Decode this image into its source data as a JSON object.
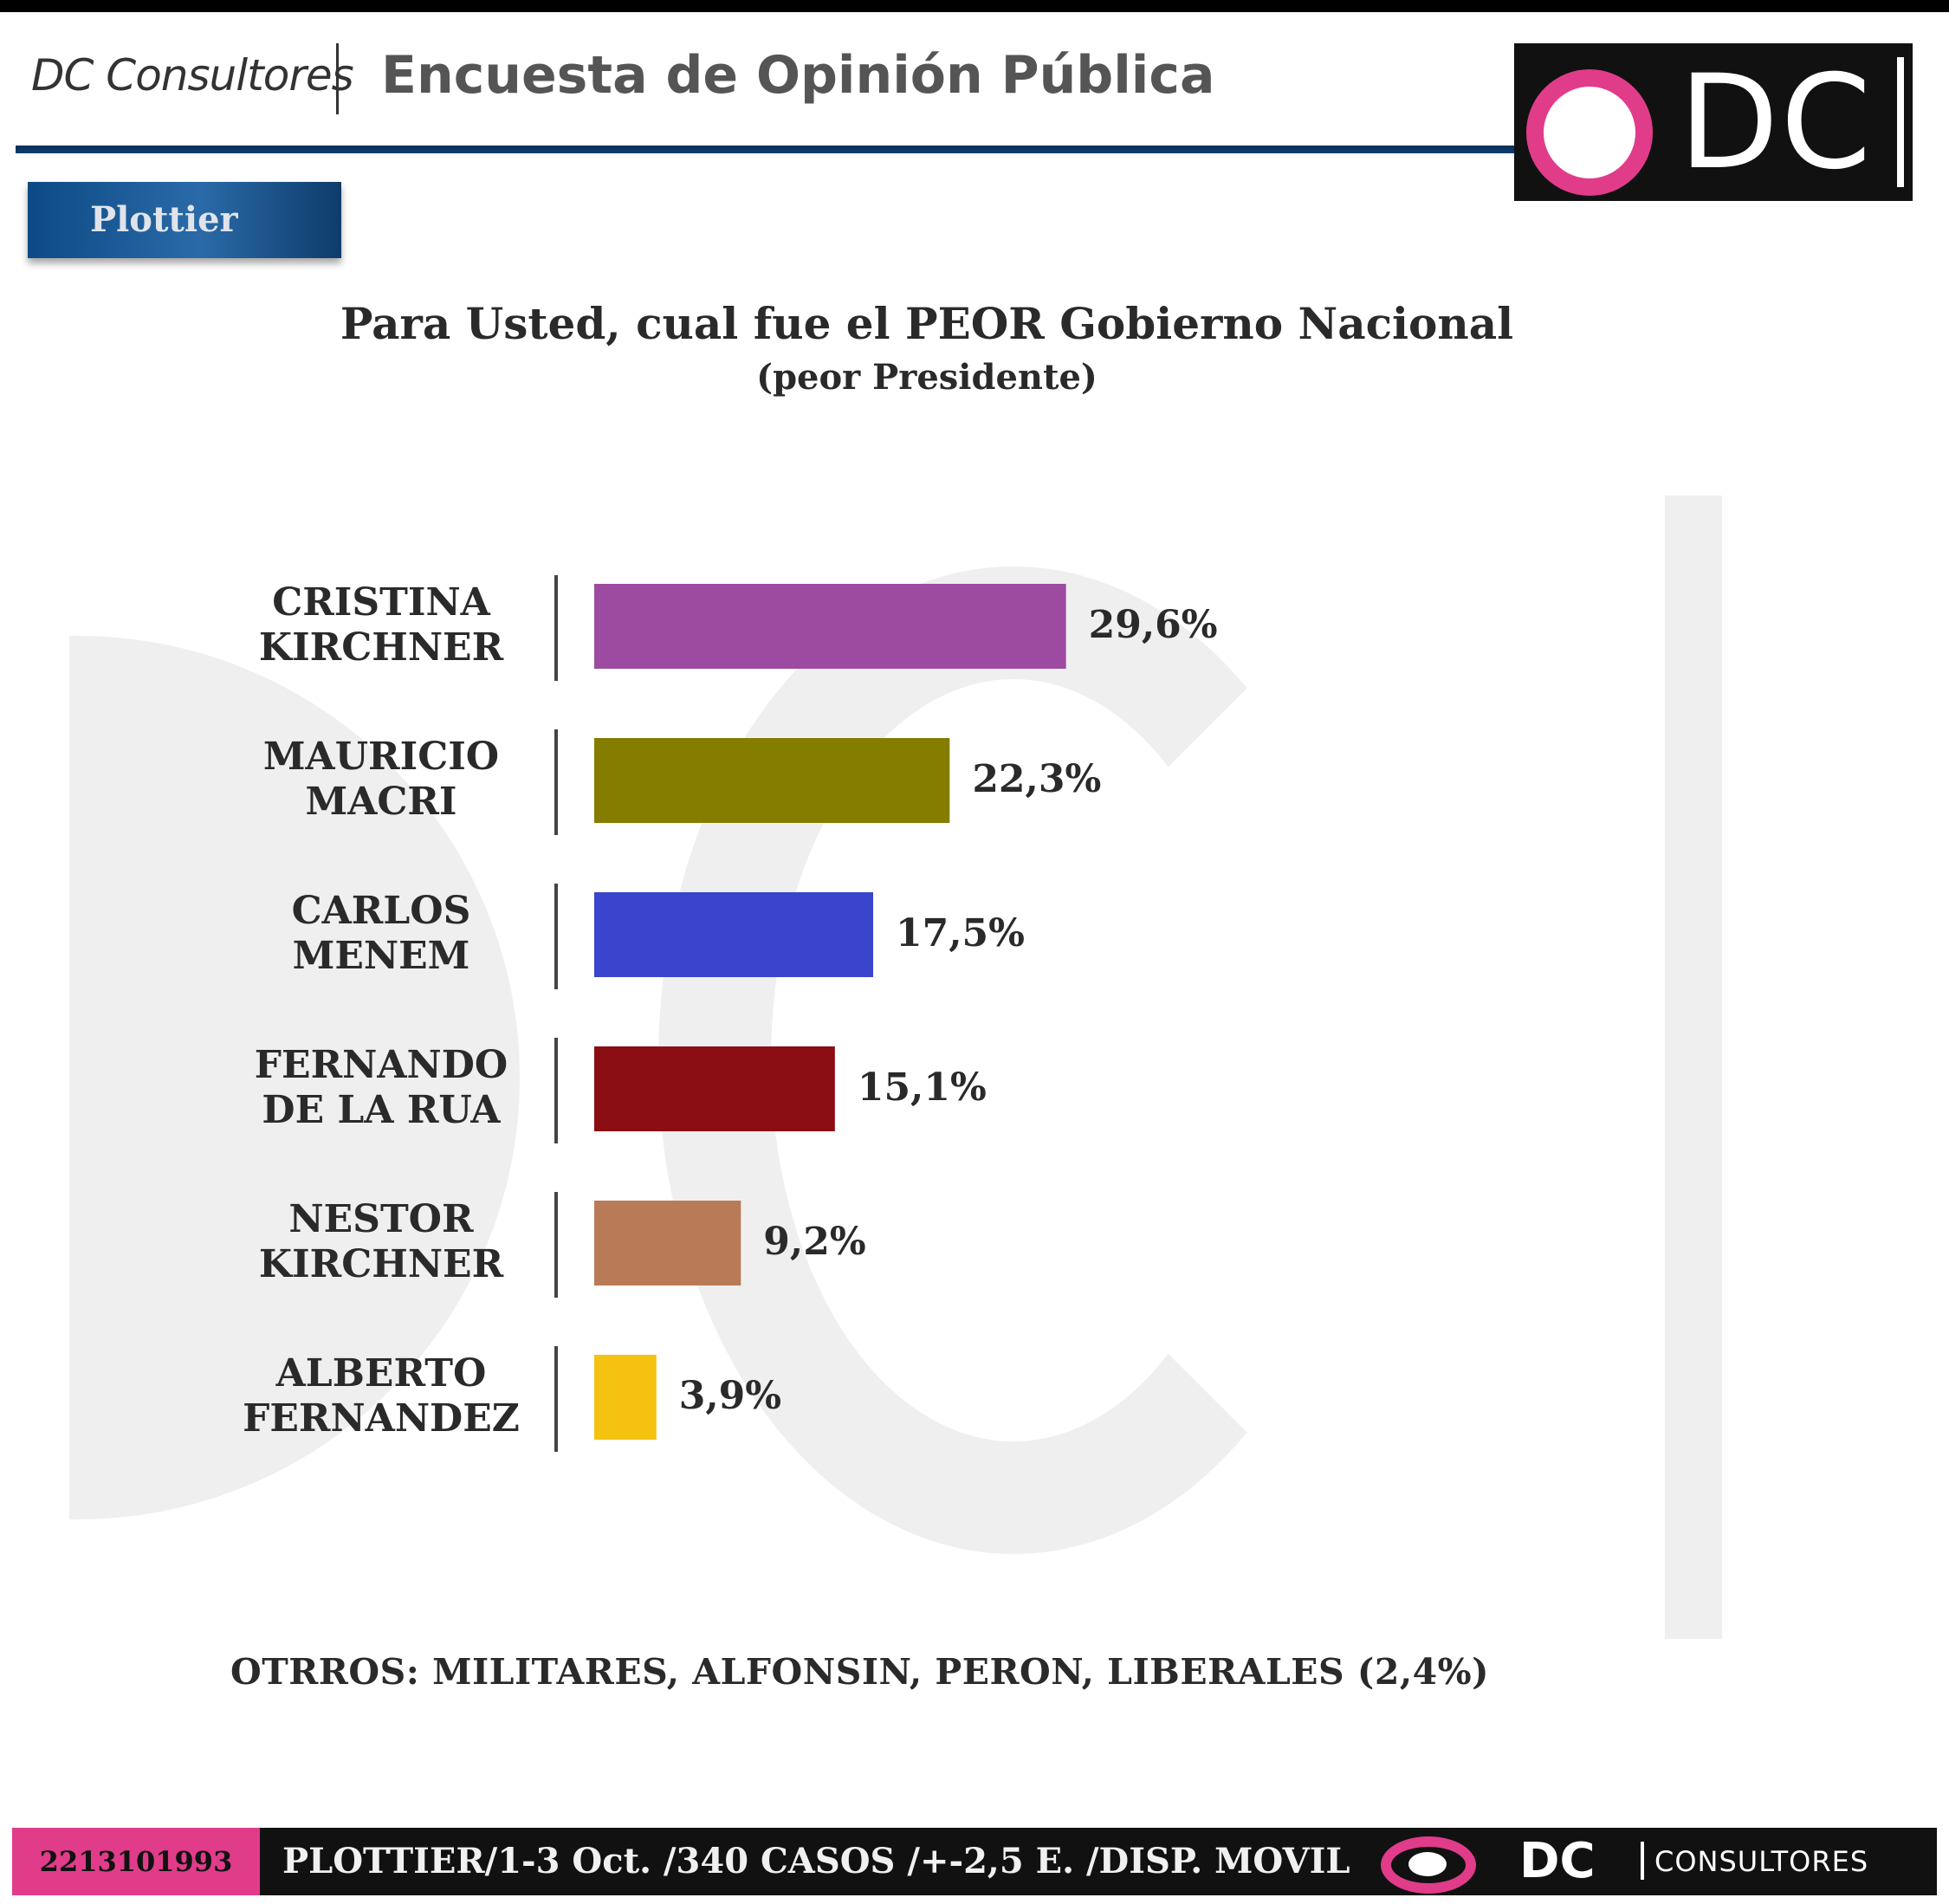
{
  "header": {
    "brand": "DC Consultores",
    "title": "Encuesta de Opinión Pública",
    "logo_text": "DC"
  },
  "region_tab": {
    "label": "Plottier"
  },
  "chart_data": {
    "type": "bar",
    "orientation": "horizontal",
    "title": "Para Usted, cual fue el PEOR Gobierno Nacional",
    "subtitle": "(peor Presidente)",
    "categories": [
      [
        "CRISTINA",
        "KIRCHNER"
      ],
      [
        "MAURICIO",
        "MACRI"
      ],
      [
        "CARLOS",
        "MENEM"
      ],
      [
        "FERNANDO",
        "DE LA RUA"
      ],
      [
        "NESTOR",
        "KIRCHNER"
      ],
      [
        "ALBERTO",
        "FERNANDEZ"
      ]
    ],
    "values": [
      29.6,
      22.3,
      17.5,
      15.1,
      9.2,
      3.9
    ],
    "value_labels": [
      "29,6%",
      "22,3%",
      "17,5%",
      "15,1%",
      "9,2%",
      "3,9%"
    ],
    "colors": [
      "#9c4ba1",
      "#857d00",
      "#3b44cc",
      "#8a0d14",
      "#b97a57",
      "#f5c211"
    ],
    "grid": false,
    "legend": "none"
  },
  "others_note": "OTRROS: MILITARES, ALFONSIN, PERON, LIBERALES (2,4%)",
  "footer": {
    "phone": "2213101993",
    "info": "PLOTTIER/1-3 Oct. /340 CASOS /+-2,5 E. /DISP. MOVIL",
    "brand_short": "DC",
    "brand_word": "CONSULTORES"
  },
  "colors": {
    "accent_pink": "#e03c8a",
    "header_rule": "#0c3e6e",
    "tab_blue": "#1a5a98"
  }
}
